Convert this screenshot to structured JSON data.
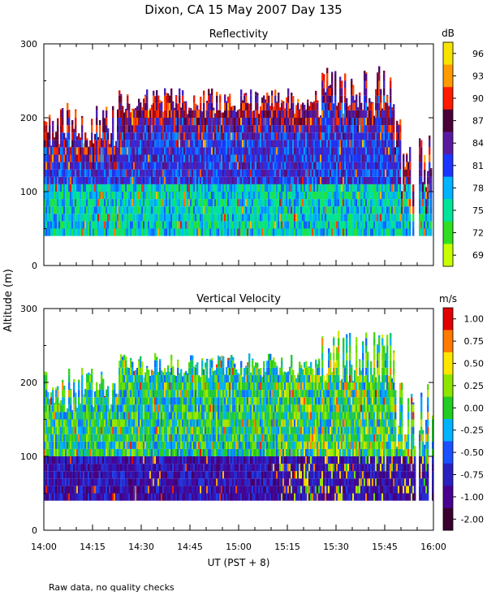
{
  "title": "Dixon, CA 15 May 2007  Day 135",
  "ylabel": "Altitude (m)",
  "xlabel": "UT  (PST + 8)",
  "footer": "Raw data, no quality checks",
  "chart_data": [
    {
      "type": "heatmap",
      "title": "Reflectivity",
      "colorbar_unit": "dB",
      "colorbar_ticks": [
        "96",
        "93",
        "90",
        "87",
        "84",
        "81",
        "78",
        "75",
        "72",
        "69"
      ],
      "colorbar_colors": [
        "#f5e400",
        "#ff9a00",
        "#ff1a00",
        "#4a0036",
        "#5a1aa0",
        "#1a35ff",
        "#00b4ff",
        "#00e59a",
        "#30e020",
        "#c8ff00"
      ],
      "y_ticks": [
        "0",
        "100",
        "200",
        "300"
      ],
      "ylim": [
        0,
        300
      ],
      "x_ticks": [
        "14:00",
        "14:15",
        "14:30",
        "14:45",
        "15:00",
        "15:15",
        "15:30",
        "15:45",
        "16:00"
      ],
      "xlim": [
        "14:00",
        "16:00"
      ],
      "data_range_altitude_m": [
        40,
        280
      ]
    },
    {
      "type": "heatmap",
      "title": "Vertical Velocity",
      "colorbar_unit": "m/s",
      "colorbar_ticks": [
        "1.00",
        "0.75",
        "0.50",
        "0.25",
        "0.00",
        "-0.25",
        "-0.50",
        "-0.75",
        "-1.00",
        "-2.00"
      ],
      "colorbar_colors": [
        "#e00000",
        "#ff7a00",
        "#ffe600",
        "#8ce600",
        "#22cc22",
        "#00b4ff",
        "#1a50ff",
        "#2a20c0",
        "#4a0090",
        "#3a0030"
      ],
      "y_ticks": [
        "0",
        "100",
        "200",
        "300"
      ],
      "ylim": [
        0,
        300
      ],
      "x_ticks": [
        "14:00",
        "14:15",
        "14:30",
        "14:45",
        "15:00",
        "15:15",
        "15:30",
        "15:45",
        "16:00"
      ],
      "xlim": [
        "14:00",
        "16:00"
      ],
      "data_range_altitude_m": [
        40,
        280
      ]
    }
  ]
}
